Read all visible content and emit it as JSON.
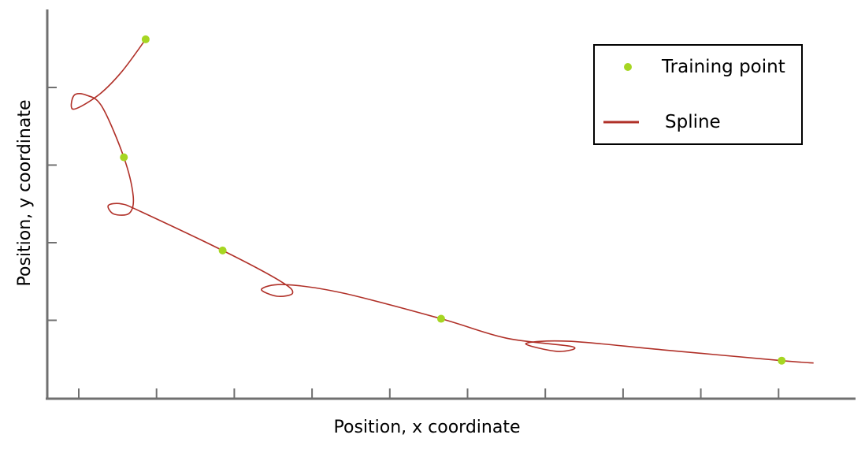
{
  "chart_data": {
    "type": "line",
    "xlabel": "Position, x coordinate",
    "ylabel": "Position, y coordinate",
    "xticks_count": 10,
    "yticks_count": 4,
    "grid": false,
    "legend_placement": "top-right",
    "colors": {
      "points": "#a6d622",
      "spline": "#b03028",
      "axis": "#707070"
    },
    "legend": [
      {
        "label": "Training point",
        "kind": "marker"
      },
      {
        "label": "Spline",
        "kind": "line"
      }
    ],
    "training_points": [
      {
        "x": 0.86,
        "y": 4.62
      },
      {
        "x": 0.58,
        "y": 3.1
      },
      {
        "x": 1.85,
        "y": 1.9
      },
      {
        "x": 4.66,
        "y": 1.02
      },
      {
        "x": 9.04,
        "y": 0.48
      }
    ],
    "spline": [
      {
        "x": 0.86,
        "y": 4.62
      },
      {
        "x": 0.55,
        "y": 4.2
      },
      {
        "x": 0.25,
        "y": 3.9
      },
      {
        "x": -0.07,
        "y": 3.72
      },
      {
        "x": -0.06,
        "y": 3.9
      },
      {
        "x": 0.1,
        "y": 3.9
      },
      {
        "x": 0.3,
        "y": 3.75
      },
      {
        "x": 0.58,
        "y": 3.1
      },
      {
        "x": 0.7,
        "y": 2.6
      },
      {
        "x": 0.65,
        "y": 2.38
      },
      {
        "x": 0.45,
        "y": 2.37
      },
      {
        "x": 0.38,
        "y": 2.48
      },
      {
        "x": 0.55,
        "y": 2.5
      },
      {
        "x": 0.8,
        "y": 2.4
      },
      {
        "x": 1.85,
        "y": 1.9
      },
      {
        "x": 2.6,
        "y": 1.5
      },
      {
        "x": 2.75,
        "y": 1.35
      },
      {
        "x": 2.55,
        "y": 1.31
      },
      {
        "x": 2.35,
        "y": 1.4
      },
      {
        "x": 2.65,
        "y": 1.46
      },
      {
        "x": 3.4,
        "y": 1.35
      },
      {
        "x": 4.66,
        "y": 1.02
      },
      {
        "x": 5.5,
        "y": 0.77
      },
      {
        "x": 6.35,
        "y": 0.66
      },
      {
        "x": 6.15,
        "y": 0.6
      },
      {
        "x": 5.75,
        "y": 0.7
      },
      {
        "x": 6.3,
        "y": 0.73
      },
      {
        "x": 7.5,
        "y": 0.62
      },
      {
        "x": 9.04,
        "y": 0.48
      },
      {
        "x": 9.45,
        "y": 0.45
      }
    ]
  }
}
